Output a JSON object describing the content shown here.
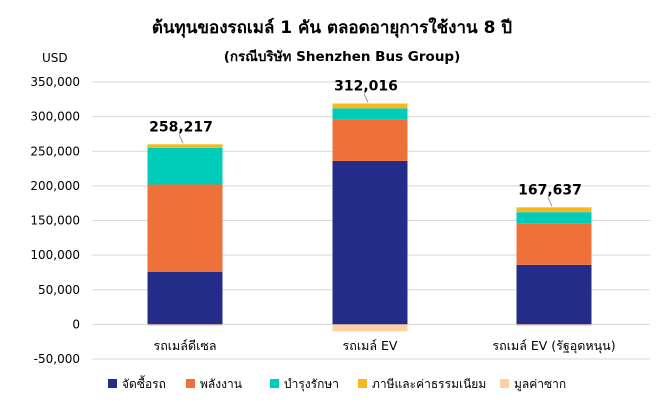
{
  "chart_data": {
    "type": "bar",
    "stacked": true,
    "title": "ต้นทุนของรถเมล์ 1 คัน ตลอดอายุการใช้งาน 8 ปี",
    "subtitle": "(กรณีบริษัท Shenzhen Bus Group)",
    "ylabel": "USD",
    "ylim": [
      -50000,
      350000
    ],
    "yticks": [
      "-50,000",
      "0",
      "50,000",
      "100,000",
      "150,000",
      "200,000",
      "250,000",
      "300,000",
      "350,000"
    ],
    "ytick_values": [
      -50000,
      0,
      50000,
      100000,
      150000,
      200000,
      250000,
      300000,
      350000
    ],
    "grid": true,
    "legend_position": "bottom",
    "categories": [
      "รถเมล์ดีเซล",
      "รถเมล์ EV",
      "รถเมล์ EV (รัฐอุดหนุน)"
    ],
    "totals": [
      "258,217",
      "312,016",
      "167,637"
    ],
    "total_values": [
      258217,
      312016,
      167637
    ],
    "series": [
      {
        "name": "จัดซื้อรถ",
        "color": "#232c88",
        "values": [
          76000,
          236000,
          86000
        ]
      },
      {
        "name": "พลังงาน",
        "color": "#f0703a",
        "values": [
          126000,
          60000,
          60000
        ]
      },
      {
        "name": "บำรุงรักษา",
        "color": "#00cdb9",
        "values": [
          53000,
          16000,
          16000
        ]
      },
      {
        "name": "ภาษีและค่าธรรมเนียม",
        "color": "#f5b81e",
        "values": [
          5000,
          7000,
          7000
        ]
      },
      {
        "name": "มูลค่าซาก",
        "color": "#ffcfa6",
        "values": [
          -2000,
          -10000,
          -2000
        ]
      }
    ]
  }
}
